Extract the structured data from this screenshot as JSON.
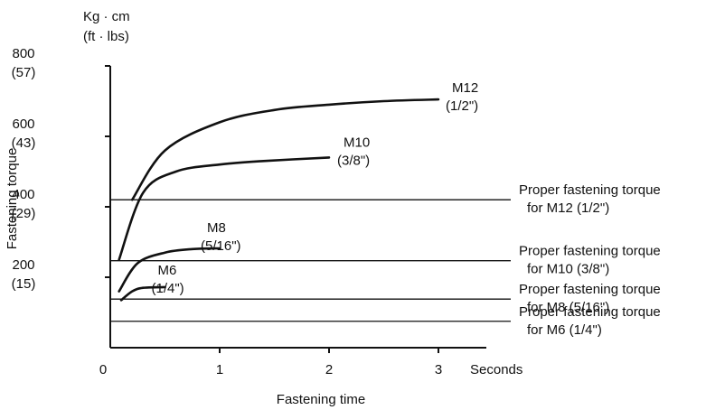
{
  "chart_data": {
    "type": "line",
    "title": "",
    "ylabel": "Fastening torque",
    "xlabel": "Fastening time",
    "y_unit_primary": "Kg · cm",
    "y_unit_secondary": "(ft · lbs)",
    "x_unit": "Seconds",
    "xlim": [
      0,
      3.5
    ],
    "ylim": [
      0,
      800
    ],
    "x_ticks": [
      {
        "value": 0,
        "label": "0"
      },
      {
        "value": 1,
        "label": "1"
      },
      {
        "value": 2,
        "label": "2"
      },
      {
        "value": 3,
        "label": "3"
      }
    ],
    "y_ticks": [
      {
        "value": 200,
        "label": "200",
        "sublabel": "(15)"
      },
      {
        "value": 400,
        "label": "400",
        "sublabel": "(29)"
      },
      {
        "value": 600,
        "label": "600",
        "sublabel": "(43)"
      },
      {
        "value": 800,
        "label": "800",
        "sublabel": "(57)"
      }
    ],
    "series": [
      {
        "name": "M12",
        "sub": "(1/2\")",
        "x": [
          0.2,
          0.5,
          1.0,
          1.5,
          2.0,
          2.5,
          3.0
        ],
        "y": [
          420,
          560,
          640,
          675,
          690,
          700,
          705
        ]
      },
      {
        "name": "M10",
        "sub": "(3/8\")",
        "x": [
          0.08,
          0.3,
          0.6,
          1.0,
          1.4,
          2.0
        ],
        "y": [
          250,
          440,
          500,
          520,
          530,
          540
        ]
      },
      {
        "name": "M8",
        "sub": "(5/16\")",
        "x": [
          0.08,
          0.25,
          0.5,
          0.75,
          1.0
        ],
        "y": [
          160,
          240,
          270,
          280,
          282
        ]
      },
      {
        "name": "M6",
        "sub": "(1/4\")",
        "x": [
          0.1,
          0.2,
          0.3,
          0.5
        ],
        "y": [
          135,
          160,
          170,
          172
        ]
      }
    ],
    "reference_lines": [
      {
        "y": 420,
        "label_line1": "Proper fastening torque",
        "label_line2": "for M12 (1/2\")"
      },
      {
        "y": 247,
        "label_line1": "Proper fastening torque",
        "label_line2": "for M10 (3/8\")"
      },
      {
        "y": 138,
        "label_line1": "Proper fastening torque",
        "label_line2": "for M8 (5/16\")"
      },
      {
        "y": 75,
        "label_line1": "Proper fastening torque",
        "label_line2": "for M6 (1/4\")"
      }
    ]
  }
}
